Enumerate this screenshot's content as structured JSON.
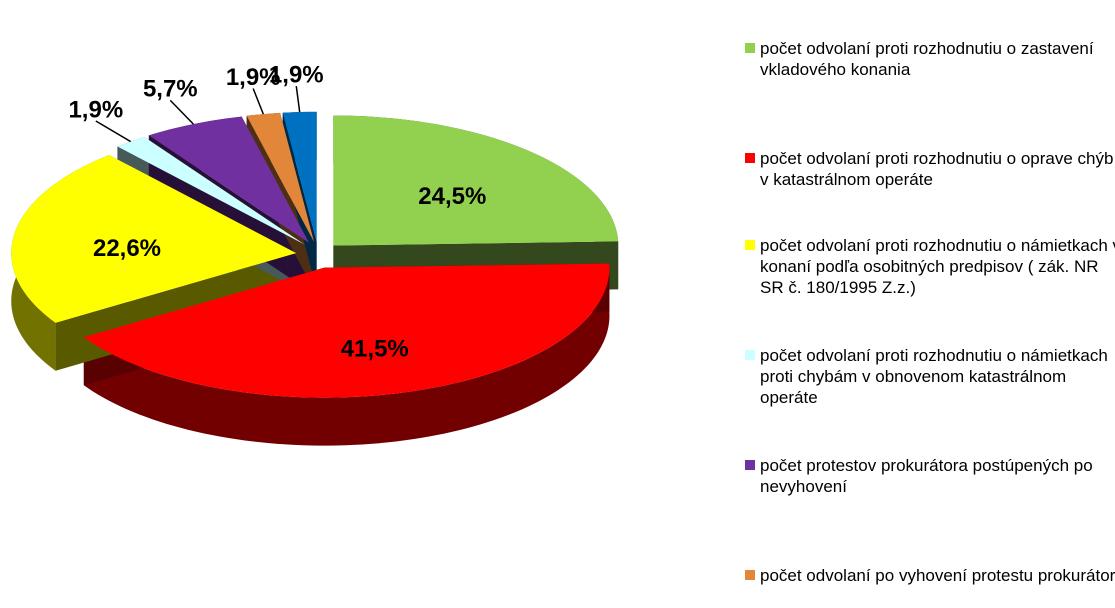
{
  "chart_data": {
    "type": "pie3d",
    "categories": [
      "počet odvolaní proti rozhodnutiu o zastavení vkladového konania",
      "počet odvolaní proti rozhodnutiu o oprave chýb v katastrálnom operáte",
      "počet odvolaní proti rozhodnutiu o námietkach v konaní podľa osobitných predpisov ( zák. NR SR č. 180/1995 Z.z.)",
      "počet odvolaní proti rozhodnutiu o námietkach proti chybám v obnovenom katastrálnom operáte",
      "počet protestov prokurátora postúpených po nevyhovení",
      "počet odvolaní po vyhovení protestu prokurátora",
      null
    ],
    "values": [
      24.5,
      41.5,
      22.6,
      1.9,
      5.7,
      1.9,
      1.9
    ],
    "value_labels": [
      "24,5%",
      "41,5%",
      "22,6%",
      "1,9%",
      "5,7%",
      "1,9%",
      "1,9%"
    ],
    "colors": [
      "#92d050",
      "#ff0000",
      "#ffff00",
      "#ccffff",
      "#7030a0",
      "#e2873a",
      "#0070c0"
    ]
  }
}
